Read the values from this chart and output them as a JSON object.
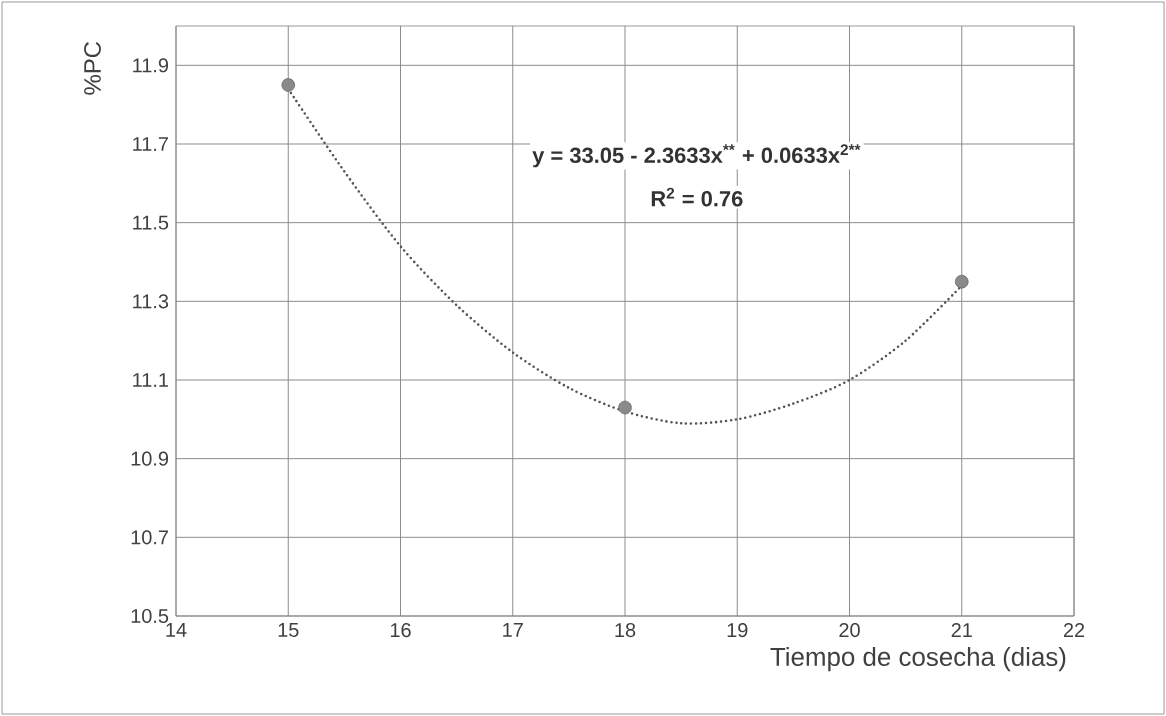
{
  "chart_data": {
    "type": "scatter",
    "xlabel": "Tiempo de cosecha (dias)",
    "ylabel": "%PC",
    "xlim": [
      14,
      22
    ],
    "xticks": [
      14,
      15,
      16,
      17,
      18,
      19,
      20,
      21,
      22
    ],
    "ylim": [
      10.5,
      12.0
    ],
    "yticks": [
      10.5,
      10.7,
      10.9,
      11.1,
      11.3,
      11.5,
      11.7,
      11.9
    ],
    "grid": true,
    "annotations": [
      "y = 33.05 - 2.3633x$^{**}$ + 0.0633x$^{2**}$",
      "R$^{2}$ = 0.76"
    ],
    "series": [
      {
        "type": "line",
        "color": "#555555",
        "marker": "none",
        "line_style": "dotted",
        "x": [
          15,
          15.5,
          16,
          16.5,
          17,
          17.5,
          18,
          18.5,
          19,
          19.5,
          20,
          20.5,
          21
        ],
        "values": [
          11.84,
          11.63,
          11.44,
          11.29,
          11.17,
          11.08,
          11.02,
          10.99,
          11.0,
          11.04,
          11.1,
          11.2,
          11.34
        ]
      },
      {
        "color": "#8a8a8a",
        "marker": "circle",
        "x": [
          15,
          18,
          21
        ],
        "values": [
          11.85,
          11.03,
          11.35
        ]
      }
    ]
  }
}
